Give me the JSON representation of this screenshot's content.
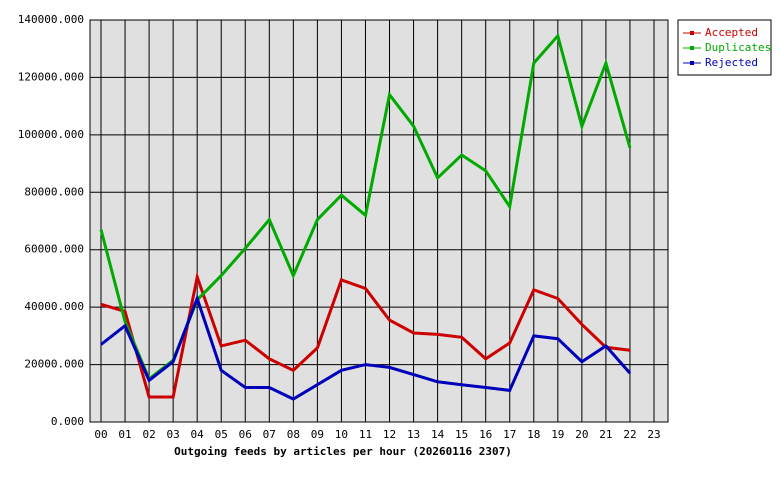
{
  "chart_data": {
    "type": "line",
    "title": "Outgoing feeds by articles per hour (20260116 2307)",
    "categories": [
      "00",
      "01",
      "02",
      "03",
      "04",
      "05",
      "06",
      "07",
      "08",
      "09",
      "10",
      "11",
      "12",
      "13",
      "14",
      "15",
      "16",
      "17",
      "18",
      "19",
      "20",
      "21",
      "22",
      "23"
    ],
    "series": [
      {
        "name": "Accepted",
        "color": "#cc0000",
        "values": [
          41000,
          38500,
          8700,
          8700,
          50500,
          26500,
          28500,
          22000,
          18000,
          25800,
          49500,
          46500,
          35500,
          31000,
          30500,
          29500,
          22000,
          27500,
          46000,
          43000,
          34000,
          26000,
          25000,
          null
        ]
      },
      {
        "name": "Duplicates",
        "color": "#00aa00",
        "values": [
          67000,
          35000,
          15000,
          21500,
          42500,
          51000,
          60500,
          70500,
          51000,
          70500,
          79000,
          72000,
          114000,
          103000,
          85000,
          93000,
          87500,
          75000,
          125000,
          134500,
          103000,
          125000,
          95500,
          null
        ]
      },
      {
        "name": "Rejected",
        "color": "#0000bb",
        "values": [
          27000,
          33500,
          14500,
          21000,
          43000,
          18000,
          12000,
          12000,
          8000,
          13000,
          18000,
          20000,
          19000,
          16500,
          14000,
          13000,
          12000,
          11000,
          30000,
          29000,
          21000,
          26500,
          17000,
          null
        ]
      }
    ],
    "ylim": [
      0,
      140000
    ],
    "yticks": [
      {
        "value": 0,
        "label": "0.000"
      },
      {
        "value": 20000,
        "label": "20000.000"
      },
      {
        "value": 40000,
        "label": "40000.000"
      },
      {
        "value": 60000,
        "label": "60000.000"
      },
      {
        "value": 80000,
        "label": "80000.000"
      },
      {
        "value": 100000,
        "label": "100000.000"
      },
      {
        "value": 120000,
        "label": "120000.000"
      },
      {
        "value": 140000,
        "label": "140000.000"
      }
    ],
    "grid": true
  }
}
